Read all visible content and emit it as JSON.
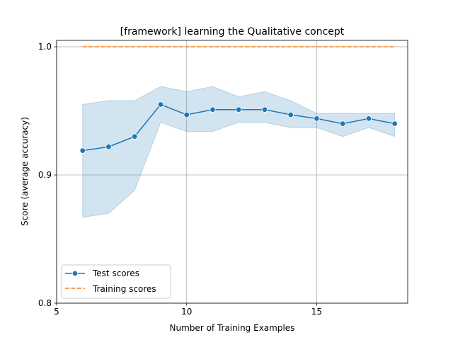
{
  "chart_data": {
    "type": "line",
    "title": "[framework] learning the Qualitative concept",
    "xlabel": "Number of Training Examples",
    "ylabel": "Score (average accuracy)",
    "xlim": [
      5,
      18.5
    ],
    "ylim": [
      0.8,
      1.005
    ],
    "xticks": [
      5,
      10,
      15
    ],
    "xtick_labels": [
      "5",
      "10",
      "15"
    ],
    "yticks": [
      0.8,
      0.9,
      1.0
    ],
    "ytick_labels": [
      "0.8",
      "0.9",
      "1.0"
    ],
    "grid": true,
    "legend_position": "lower-left",
    "x": [
      6,
      7,
      8,
      9,
      10,
      11,
      12,
      13,
      14,
      15,
      16,
      17,
      18
    ],
    "series": [
      {
        "name": "Test scores",
        "color": "#1f77b4",
        "marker": "circle",
        "line_style": "solid",
        "values": [
          0.919,
          0.922,
          0.93,
          0.955,
          0.947,
          0.951,
          0.951,
          0.951,
          0.947,
          0.944,
          0.94,
          0.944,
          0.94
        ],
        "band_lower": [
          0.867,
          0.87,
          0.888,
          0.941,
          0.934,
          0.934,
          0.941,
          0.941,
          0.937,
          0.937,
          0.93,
          0.937,
          0.93
        ],
        "band_upper": [
          0.955,
          0.958,
          0.958,
          0.969,
          0.965,
          0.969,
          0.961,
          0.965,
          0.958,
          0.948,
          0.948,
          0.948,
          0.948
        ]
      },
      {
        "name": "Training scores",
        "color": "#ff7f0e",
        "marker": "none",
        "line_style": "dashed",
        "values": [
          1.0,
          1.0,
          1.0,
          1.0,
          1.0,
          1.0,
          1.0,
          1.0,
          1.0,
          1.0,
          1.0,
          1.0,
          1.0
        ]
      }
    ]
  }
}
